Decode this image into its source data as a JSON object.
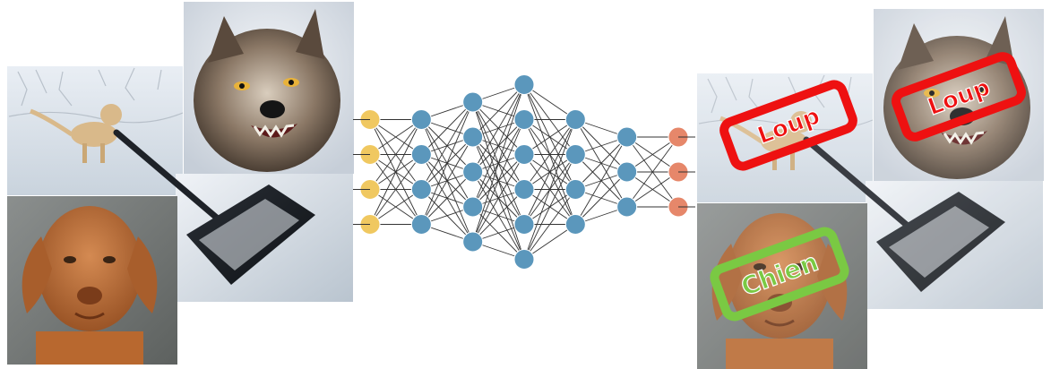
{
  "diagram": {
    "layers": [
      {
        "role": "input",
        "nodes": 4,
        "color": "#f0c860"
      },
      {
        "role": "hidden",
        "nodes": 4,
        "color": "#5b97bc"
      },
      {
        "role": "hidden",
        "nodes": 5,
        "color": "#5b97bc"
      },
      {
        "role": "hidden",
        "nodes": 6,
        "color": "#5b97bc"
      },
      {
        "role": "hidden",
        "nodes": 4,
        "color": "#5b97bc"
      },
      {
        "role": "hidden",
        "nodes": 3,
        "color": "#5b97bc"
      },
      {
        "role": "output",
        "nodes": 3,
        "color": "#e6876a"
      }
    ],
    "edge_color": "#333333",
    "labels": {
      "wolf": "Loup",
      "dog": "Chien"
    },
    "colors": {
      "wrong": "#ee1111",
      "right": "#7ac943"
    }
  }
}
